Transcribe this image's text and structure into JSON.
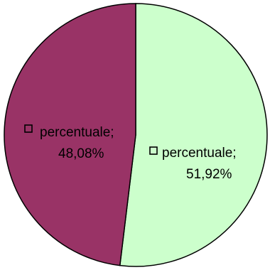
{
  "chart_data": {
    "type": "pie",
    "slices": [
      {
        "name": "percentuale",
        "value": 51.92,
        "label_name": "percentuale;",
        "label_value": "51,92%",
        "color": "#ccffcc"
      },
      {
        "name": "percentuale",
        "value": 48.08,
        "label_name": "percentuale;",
        "label_value": "48,08%",
        "color": "#993366"
      }
    ],
    "start_angle_deg": 0,
    "direction": "clockwise",
    "legend": "none",
    "outline_color": "#000000"
  }
}
